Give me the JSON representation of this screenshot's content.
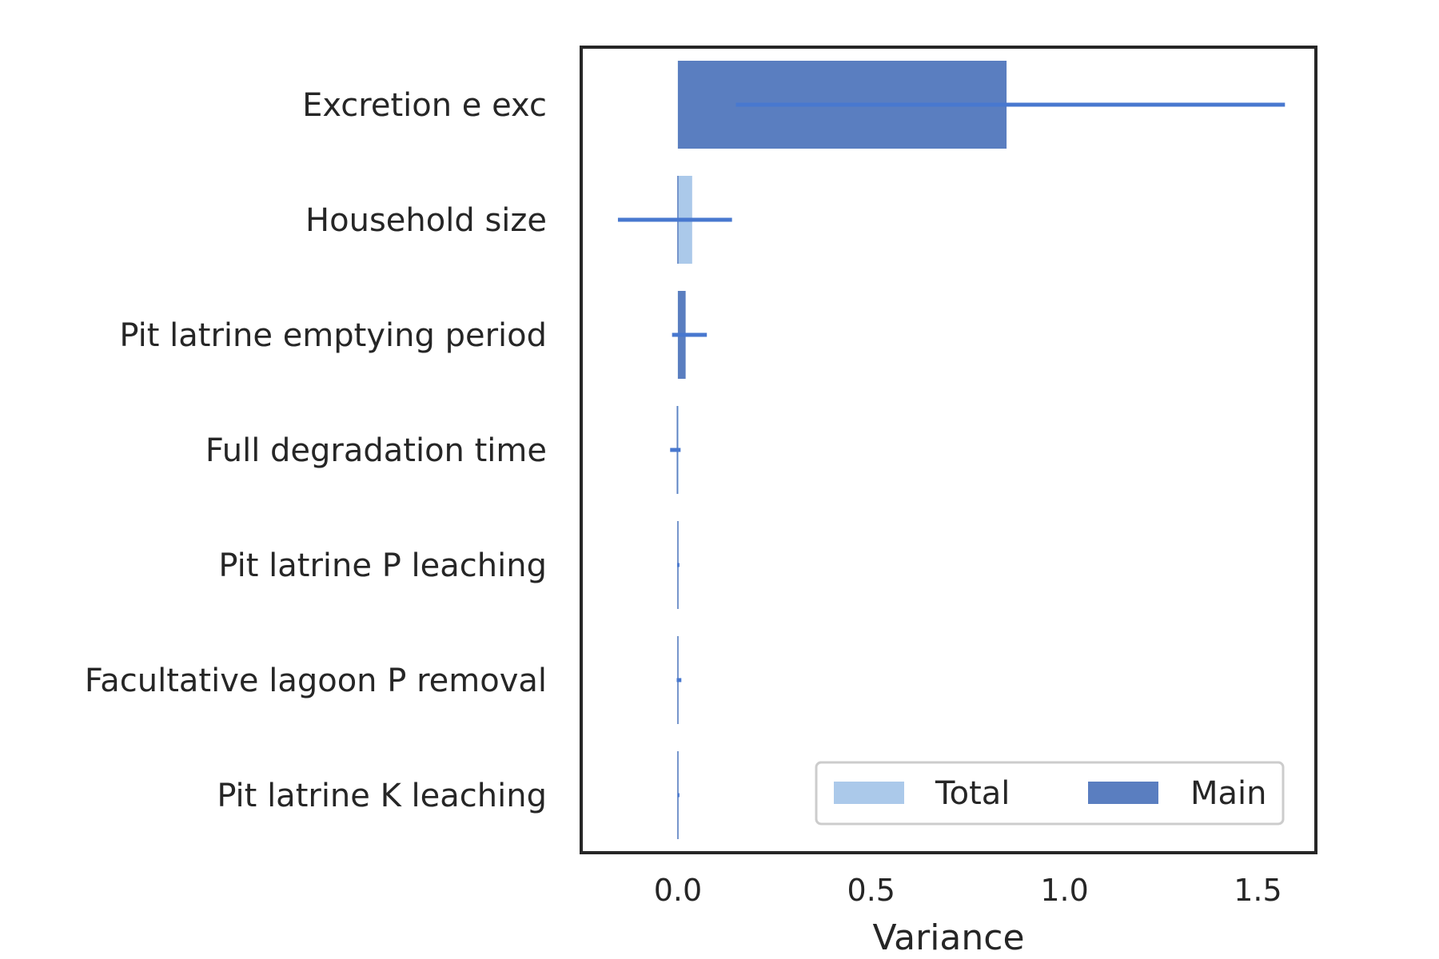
{
  "chart_data": {
    "type": "bar",
    "orientation": "horizontal",
    "categories": [
      "Excretion e exc",
      "Household size",
      "Pit latrine emptying period",
      "Full degradation time",
      "Pit latrine P leaching",
      "Facultative lagoon P removal",
      "Pit latrine K leaching"
    ],
    "series": [
      {
        "name": "Total",
        "color": "#abc9ea",
        "values": [
          0.85,
          0.037,
          0.02,
          0.001,
          0.001,
          0.002,
          0.001
        ],
        "err_low": [
          0.15,
          -0.155,
          -0.015,
          -0.02,
          -0.002,
          -0.003,
          -0.001
        ],
        "err_high": [
          1.57,
          0.14,
          0.075,
          0.007,
          0.004,
          0.009,
          0.004
        ]
      },
      {
        "name": "Main",
        "color": "#5a7ec0",
        "values": [
          0.85,
          0.0,
          0.02,
          -0.003,
          0.0,
          0.0,
          0.0
        ]
      }
    ],
    "xlabel": "Variance",
    "ylabel": "",
    "xlim": [
      -0.25,
      1.65
    ],
    "xticks": [
      0.0,
      0.5,
      1.0,
      1.5
    ],
    "xtick_labels": [
      "0.0",
      "0.5",
      "1.0",
      "1.5"
    ],
    "grid": false,
    "legend": {
      "placement": "lower-right",
      "columns": 2
    },
    "errorbar_color": "#4878cf"
  }
}
